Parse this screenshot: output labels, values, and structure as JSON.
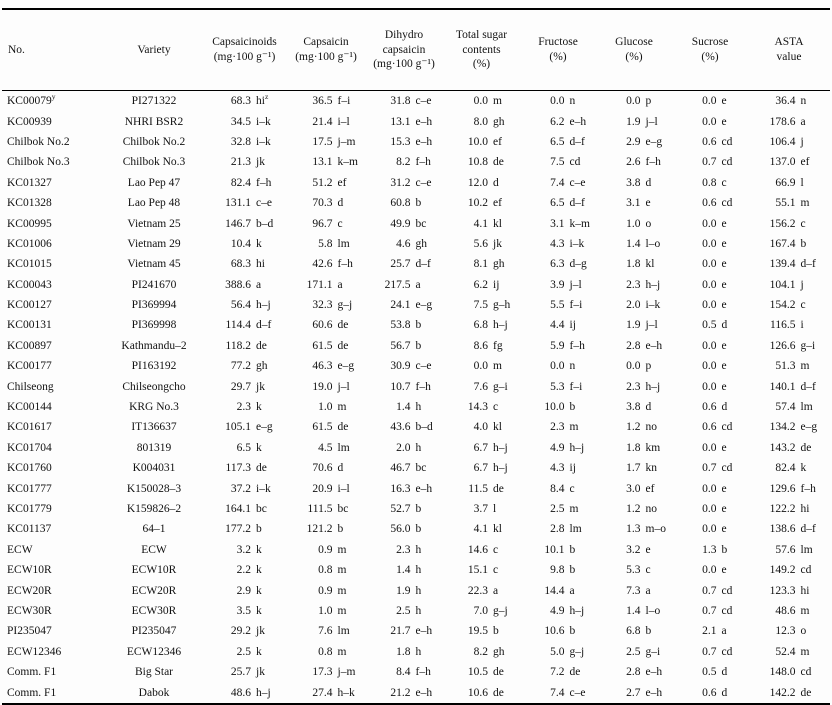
{
  "table": {
    "columns": [
      {
        "label": "No.",
        "unit": ""
      },
      {
        "label": "Variety",
        "unit": ""
      },
      {
        "label": "Capsaicinoids",
        "unit": "(mg·100 g⁻¹)"
      },
      {
        "label": "Capsaicin",
        "unit": "(mg·100 g⁻¹)"
      },
      {
        "label": "Dihydro capsaicin",
        "unit": "(mg·100 g⁻¹)"
      },
      {
        "label": "Total sugar contents",
        "unit": "(%)"
      },
      {
        "label": "Fructose",
        "unit": "(%)"
      },
      {
        "label": "Glucose",
        "unit": "(%)"
      },
      {
        "label": "Sucrose",
        "unit": "(%)"
      },
      {
        "label": "ASTA value",
        "unit": ""
      }
    ],
    "rows": [
      {
        "no": "KC00079",
        "no_sup": "y",
        "variety": "PI271322",
        "values": [
          [
            "68.3",
            "hi",
            "z"
          ],
          [
            "36.5",
            "f–i"
          ],
          [
            "31.8",
            "c–e"
          ],
          [
            "0.0",
            "m"
          ],
          [
            "0.0",
            "n"
          ],
          [
            "0.0",
            "p"
          ],
          [
            "0.0",
            "e"
          ],
          [
            "36.4",
            "n"
          ]
        ]
      },
      {
        "no": "KC00939",
        "variety": "NHRI BSR2",
        "values": [
          [
            "34.5",
            "i–k"
          ],
          [
            "21.4",
            "i–l"
          ],
          [
            "13.1",
            "e–h"
          ],
          [
            "8.0",
            "gh"
          ],
          [
            "6.2",
            "e–h"
          ],
          [
            "1.9",
            "j–l"
          ],
          [
            "0.0",
            "e"
          ],
          [
            "178.6",
            "a"
          ]
        ]
      },
      {
        "no": "Chilbok No.2",
        "variety": "Chilbok No.2",
        "values": [
          [
            "32.8",
            "i–k"
          ],
          [
            "17.5",
            "j–m"
          ],
          [
            "15.3",
            "e–h"
          ],
          [
            "10.0",
            "ef"
          ],
          [
            "6.5",
            "d–f"
          ],
          [
            "2.9",
            "e–g"
          ],
          [
            "0.6",
            "cd"
          ],
          [
            "106.4",
            "j"
          ]
        ]
      },
      {
        "no": "Chilbok No.3",
        "variety": "Chilbok No.3",
        "values": [
          [
            "21.3",
            "jk"
          ],
          [
            "13.1",
            "k–m"
          ],
          [
            "8.2",
            "f–h"
          ],
          [
            "10.8",
            "de"
          ],
          [
            "7.5",
            "cd"
          ],
          [
            "2.6",
            "f–h"
          ],
          [
            "0.7",
            "cd"
          ],
          [
            "137.0",
            "ef"
          ]
        ]
      },
      {
        "no": "KC01327",
        "variety": "Lao Pep 47",
        "values": [
          [
            "82.4",
            "f–h"
          ],
          [
            "51.2",
            "ef"
          ],
          [
            "31.2",
            "c–e"
          ],
          [
            "12.0",
            "d"
          ],
          [
            "7.4",
            "c–e"
          ],
          [
            "3.8",
            "d"
          ],
          [
            "0.8",
            "c"
          ],
          [
            "66.9",
            "l"
          ]
        ]
      },
      {
        "no": "KC01328",
        "variety": "Lao Pep 48",
        "values": [
          [
            "131.1",
            "c–e"
          ],
          [
            "70.3",
            "d"
          ],
          [
            "60.8",
            "b"
          ],
          [
            "10.2",
            "ef"
          ],
          [
            "6.5",
            "d–f"
          ],
          [
            "3.1",
            "e"
          ],
          [
            "0.6",
            "cd"
          ],
          [
            "55.1",
            "m"
          ]
        ]
      },
      {
        "no": "KC00995",
        "variety": "Vietnam 25",
        "values": [
          [
            "146.7",
            "b–d"
          ],
          [
            "96.7",
            "c"
          ],
          [
            "49.9",
            "bc"
          ],
          [
            "4.1",
            "kl"
          ],
          [
            "3.1",
            "k–m"
          ],
          [
            "1.0",
            "o"
          ],
          [
            "0.0",
            "e"
          ],
          [
            "156.2",
            "c"
          ]
        ]
      },
      {
        "no": "KC01006",
        "variety": "Vietnam 29",
        "values": [
          [
            "10.4",
            "k"
          ],
          [
            "5.8",
            "lm"
          ],
          [
            "4.6",
            "gh"
          ],
          [
            "5.6",
            "jk"
          ],
          [
            "4.3",
            "i–k"
          ],
          [
            "1.4",
            "l–o"
          ],
          [
            "0.0",
            "e"
          ],
          [
            "167.4",
            "b"
          ]
        ]
      },
      {
        "no": "KC01015",
        "variety": "Vietnam 45",
        "values": [
          [
            "68.3",
            "hi"
          ],
          [
            "42.6",
            "f–h"
          ],
          [
            "25.7",
            "d–f"
          ],
          [
            "8.1",
            "gh"
          ],
          [
            "6.3",
            "d–g"
          ],
          [
            "1.8",
            "kl"
          ],
          [
            "0.0",
            "e"
          ],
          [
            "139.4",
            "d–f"
          ]
        ]
      },
      {
        "no": "KC00043",
        "variety": "PI241670",
        "values": [
          [
            "388.6",
            "a"
          ],
          [
            "171.1",
            "a"
          ],
          [
            "217.5",
            "a"
          ],
          [
            "6.2",
            "ij"
          ],
          [
            "3.9",
            "j–l"
          ],
          [
            "2.3",
            "h–j"
          ],
          [
            "0.0",
            "e"
          ],
          [
            "104.1",
            "j"
          ]
        ]
      },
      {
        "no": "KC00127",
        "variety": "PI369994",
        "values": [
          [
            "56.4",
            "h–j"
          ],
          [
            "32.3",
            "g–j"
          ],
          [
            "24.1",
            "e–g"
          ],
          [
            "7.5",
            "g–h"
          ],
          [
            "5.5",
            "f–i"
          ],
          [
            "2.0",
            "i–k"
          ],
          [
            "0.0",
            "e"
          ],
          [
            "154.2",
            "c"
          ]
        ]
      },
      {
        "no": "KC00131",
        "variety": "PI369998",
        "values": [
          [
            "114.4",
            "d–f"
          ],
          [
            "60.6",
            "de"
          ],
          [
            "53.8",
            "b"
          ],
          [
            "6.8",
            "h–j"
          ],
          [
            "4.4",
            "ij"
          ],
          [
            "1.9",
            "j–l"
          ],
          [
            "0.5",
            "d"
          ],
          [
            "116.5",
            "i"
          ]
        ]
      },
      {
        "no": "KC00897",
        "variety": "Kathmandu–2",
        "values": [
          [
            "118.2",
            "de"
          ],
          [
            "61.5",
            "de"
          ],
          [
            "56.7",
            "b"
          ],
          [
            "8.6",
            "fg"
          ],
          [
            "5.9",
            "f–h"
          ],
          [
            "2.8",
            "e–h"
          ],
          [
            "0.0",
            "e"
          ],
          [
            "126.6",
            "g–i"
          ]
        ]
      },
      {
        "no": "KC00177",
        "variety": "PI163192",
        "values": [
          [
            "77.2",
            "gh"
          ],
          [
            "46.3",
            "e–g"
          ],
          [
            "30.9",
            "c–e"
          ],
          [
            "0.0",
            "m"
          ],
          [
            "0.0",
            "n"
          ],
          [
            "0.0",
            "p"
          ],
          [
            "0.0",
            "e"
          ],
          [
            "51.3",
            "m"
          ]
        ]
      },
      {
        "no": "Chilseong",
        "variety": "Chilseongcho",
        "values": [
          [
            "29.7",
            "jk"
          ],
          [
            "19.0",
            "j–l"
          ],
          [
            "10.7",
            "f–h"
          ],
          [
            "7.6",
            "g–i"
          ],
          [
            "5.3",
            "f–i"
          ],
          [
            "2.3",
            "h–j"
          ],
          [
            "0.0",
            "e"
          ],
          [
            "140.1",
            "d–f"
          ]
        ]
      },
      {
        "no": "KC00144",
        "variety": "KRG No.3",
        "values": [
          [
            "2.3",
            "k"
          ],
          [
            "1.0",
            "m"
          ],
          [
            "1.4",
            "h"
          ],
          [
            "14.3",
            "c"
          ],
          [
            "10.0",
            "b"
          ],
          [
            "3.8",
            "d"
          ],
          [
            "0.6",
            "d"
          ],
          [
            "57.4",
            "lm"
          ]
        ]
      },
      {
        "no": "KC01617",
        "variety": "IT136637",
        "values": [
          [
            "105.1",
            "e–g"
          ],
          [
            "61.5",
            "de"
          ],
          [
            "43.6",
            "b–d"
          ],
          [
            "4.0",
            "kl"
          ],
          [
            "2.3",
            "m"
          ],
          [
            "1.2",
            "no"
          ],
          [
            "0.6",
            "cd"
          ],
          [
            "134.2",
            "e–g"
          ]
        ]
      },
      {
        "no": "KC01704",
        "variety": "801319",
        "values": [
          [
            "6.5",
            "k"
          ],
          [
            "4.5",
            "lm"
          ],
          [
            "2.0",
            "h"
          ],
          [
            "6.7",
            "h–j"
          ],
          [
            "4.9",
            "h–j"
          ],
          [
            "1.8",
            "km"
          ],
          [
            "0.0",
            "e"
          ],
          [
            "143.2",
            "de"
          ]
        ]
      },
      {
        "no": "KC01760",
        "variety": "K004031",
        "values": [
          [
            "117.3",
            "de"
          ],
          [
            "70.6",
            "d"
          ],
          [
            "46.7",
            "bc"
          ],
          [
            "6.7",
            "h–j"
          ],
          [
            "4.3",
            "ij"
          ],
          [
            "1.7",
            "kn"
          ],
          [
            "0.7",
            "cd"
          ],
          [
            "82.4",
            "k"
          ]
        ]
      },
      {
        "no": "KC01777",
        "variety": "K150028–3",
        "values": [
          [
            "37.2",
            "i–k"
          ],
          [
            "20.9",
            "i–l"
          ],
          [
            "16.3",
            "e–h"
          ],
          [
            "11.5",
            "de"
          ],
          [
            "8.4",
            "c"
          ],
          [
            "3.0",
            "ef"
          ],
          [
            "0.0",
            "e"
          ],
          [
            "129.6",
            "f–h"
          ]
        ]
      },
      {
        "no": "KC01779",
        "variety": "K159826–2",
        "values": [
          [
            "164.1",
            "bc"
          ],
          [
            "111.5",
            "bc"
          ],
          [
            "52.7",
            "b"
          ],
          [
            "3.7",
            "l"
          ],
          [
            "2.5",
            "m"
          ],
          [
            "1.2",
            "no"
          ],
          [
            "0.0",
            "e"
          ],
          [
            "122.2",
            "hi"
          ]
        ]
      },
      {
        "no": "KC01137",
        "variety": "64–1",
        "values": [
          [
            "177.2",
            "b"
          ],
          [
            "121.2",
            "b"
          ],
          [
            "56.0",
            "b"
          ],
          [
            "4.1",
            "kl"
          ],
          [
            "2.8",
            "lm"
          ],
          [
            "1.3",
            "m–o"
          ],
          [
            "0.0",
            "e"
          ],
          [
            "138.6",
            "d–f"
          ]
        ]
      },
      {
        "no": "ECW",
        "variety": "ECW",
        "values": [
          [
            "3.2",
            "k"
          ],
          [
            "0.9",
            "m"
          ],
          [
            "2.3",
            "h"
          ],
          [
            "14.6",
            "c"
          ],
          [
            "10.1",
            "b"
          ],
          [
            "3.2",
            "e"
          ],
          [
            "1.3",
            "b"
          ],
          [
            "57.6",
            "lm"
          ]
        ]
      },
      {
        "no": "ECW10R",
        "variety": "ECW10R",
        "values": [
          [
            "2.2",
            "k"
          ],
          [
            "0.8",
            "m"
          ],
          [
            "1.4",
            "h"
          ],
          [
            "15.1",
            "c"
          ],
          [
            "9.8",
            "b"
          ],
          [
            "5.3",
            "c"
          ],
          [
            "0.0",
            "e"
          ],
          [
            "149.2",
            "cd"
          ]
        ]
      },
      {
        "no": "ECW20R",
        "variety": "ECW20R",
        "values": [
          [
            "2.9",
            "k"
          ],
          [
            "0.9",
            "m"
          ],
          [
            "1.9",
            "h"
          ],
          [
            "22.3",
            "a"
          ],
          [
            "14.4",
            "a"
          ],
          [
            "7.3",
            "a"
          ],
          [
            "0.7",
            "cd"
          ],
          [
            "123.3",
            "hi"
          ]
        ]
      },
      {
        "no": "ECW30R",
        "variety": "ECW30R",
        "values": [
          [
            "3.5",
            "k"
          ],
          [
            "1.0",
            "m"
          ],
          [
            "2.5",
            "h"
          ],
          [
            "7.0",
            "g–j"
          ],
          [
            "4.9",
            "h–j"
          ],
          [
            "1.4",
            "l–o"
          ],
          [
            "0.7",
            "cd"
          ],
          [
            "48.6",
            "m"
          ]
        ]
      },
      {
        "no": "PI235047",
        "variety": "PI235047",
        "values": [
          [
            "29.2",
            "jk"
          ],
          [
            "7.6",
            "lm"
          ],
          [
            "21.7",
            "e–h"
          ],
          [
            "19.5",
            "b"
          ],
          [
            "10.6",
            "b"
          ],
          [
            "6.8",
            "b"
          ],
          [
            "2.1",
            "a"
          ],
          [
            "12.3",
            "o"
          ]
        ]
      },
      {
        "no": "ECW12346",
        "variety": "ECW12346",
        "values": [
          [
            "2.5",
            "k"
          ],
          [
            "0.8",
            "m"
          ],
          [
            "1.8",
            "h"
          ],
          [
            "8.2",
            "gh"
          ],
          [
            "5.0",
            "g–j"
          ],
          [
            "2.5",
            "g–i"
          ],
          [
            "0.7",
            "cd"
          ],
          [
            "52.4",
            "m"
          ]
        ]
      },
      {
        "no": "Comm. F1",
        "variety": "Big Star",
        "values": [
          [
            "25.7",
            "jk"
          ],
          [
            "17.3",
            "j–m"
          ],
          [
            "8.4",
            "f–h"
          ],
          [
            "10.5",
            "de"
          ],
          [
            "7.2",
            "de"
          ],
          [
            "2.8",
            "e–h"
          ],
          [
            "0.5",
            "d"
          ],
          [
            "148.0",
            "cd"
          ]
        ]
      },
      {
        "no": "Comm. F1",
        "variety": "Dabok",
        "values": [
          [
            "48.6",
            "h–j"
          ],
          [
            "27.4",
            "h–k"
          ],
          [
            "21.2",
            "e–h"
          ],
          [
            "10.6",
            "de"
          ],
          [
            "7.4",
            "c–e"
          ],
          [
            "2.7",
            "e–h"
          ],
          [
            "0.6",
            "d"
          ],
          [
            "142.2",
            "de"
          ]
        ]
      }
    ]
  }
}
